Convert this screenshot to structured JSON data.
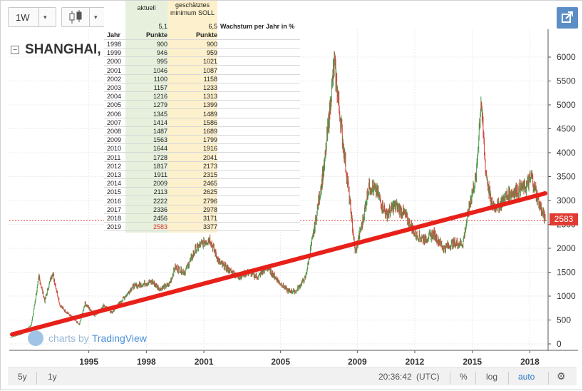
{
  "toolbar": {
    "interval": "1W",
    "interval_caret": "▾",
    "style_caret": "▾"
  },
  "symbol": {
    "collapse": "−",
    "name": "SHANGHAI, W"
  },
  "table": {
    "header_actual": "aktuell",
    "header_soll_line1": "geschätztes",
    "header_soll_line2": "minimum SOLL",
    "growth_actual": "5,1",
    "growth_soll": "6,5",
    "growth_label": "Wachstum per Jahr in %",
    "col_year": "Jahr",
    "col_points_actual": "Punkte",
    "col_points_soll": "Punkte",
    "rows": [
      {
        "year": "1998",
        "actual": "900",
        "soll": "900"
      },
      {
        "year": "1999",
        "actual": "946",
        "soll": "959"
      },
      {
        "year": "2000",
        "actual": "995",
        "soll": "1021"
      },
      {
        "year": "2001",
        "actual": "1046",
        "soll": "1087"
      },
      {
        "year": "2002",
        "actual": "1100",
        "soll": "1158"
      },
      {
        "year": "2003",
        "actual": "1157",
        "soll": "1233"
      },
      {
        "year": "2004",
        "actual": "1216",
        "soll": "1313"
      },
      {
        "year": "2005",
        "actual": "1279",
        "soll": "1399"
      },
      {
        "year": "2006",
        "actual": "1345",
        "soll": "1489"
      },
      {
        "year": "2007",
        "actual": "1414",
        "soll": "1586"
      },
      {
        "year": "2008",
        "actual": "1487",
        "soll": "1689"
      },
      {
        "year": "2009",
        "actual": "1563",
        "soll": "1799"
      },
      {
        "year": "2010",
        "actual": "1644",
        "soll": "1916"
      },
      {
        "year": "2011",
        "actual": "1728",
        "soll": "2041"
      },
      {
        "year": "2012",
        "actual": "1817",
        "soll": "2173"
      },
      {
        "year": "2013",
        "actual": "1911",
        "soll": "2315"
      },
      {
        "year": "2014",
        "actual": "2009",
        "soll": "2465"
      },
      {
        "year": "2015",
        "actual": "2113",
        "soll": "2625"
      },
      {
        "year": "2016",
        "actual": "2222",
        "soll": "2796"
      },
      {
        "year": "2017",
        "actual": "2336",
        "soll": "2978"
      },
      {
        "year": "2018",
        "actual": "2456",
        "soll": "3171"
      },
      {
        "year": "2019",
        "actual": "2583",
        "soll": "3377",
        "highlight": true
      }
    ]
  },
  "watermark": {
    "by": "charts by",
    "brand": "TradingView"
  },
  "price_label": "2583",
  "bottom_bar": {
    "range_5y": "5y",
    "range_1y": "1y",
    "clock": "20:36:42",
    "timezone": "(UTC)",
    "percent": "%",
    "log": "log",
    "auto": "auto"
  },
  "colors": {
    "accent": "#5b8ec4",
    "trend_line": "#e8201a",
    "price_tag": "#e23b33",
    "candle_up": "#4c9a4c",
    "candle_down": "#d0493e",
    "aktuell_bg": "#e6f0dc",
    "soll_bg": "#fdf0cc"
  },
  "icons": {
    "candles": "candlestick-icon",
    "popout": "popout-icon",
    "gear": "gear-icon"
  },
  "chart_data": {
    "type": "line",
    "title": "SHANGHAI, W",
    "ylim": [
      0,
      6400
    ],
    "x_ticks": [
      "1995",
      "1998",
      "2001",
      "2005",
      "2009",
      "2012",
      "2015",
      "2018"
    ],
    "y_ticks": [
      "0",
      "500",
      "1000",
      "1500",
      "2000",
      "2500",
      "3000",
      "3500",
      "4000",
      "4500",
      "5000",
      "5500",
      "6000"
    ],
    "last_price": 2583,
    "trend_line": {
      "start": [
        1991,
        200
      ],
      "end": [
        2018.8,
        3150
      ]
    },
    "series": [
      {
        "x": [
          1990.9,
          1991.5,
          1992.0,
          1992.4,
          1992.7,
          1993.1,
          1993.5,
          1994.0,
          1994.5,
          1994.8,
          1995.3,
          1995.8,
          1996.2,
          1996.8,
          1997.3,
          1997.8,
          1998.3,
          1998.7,
          1999.2,
          1999.5,
          2000.0,
          2000.6,
          2001.3,
          2001.8,
          2002.3,
          2002.8,
          2003.3,
          2003.8,
          2004.3,
          2004.8,
          2005.4,
          2005.8,
          2006.3,
          2006.8,
          2007.3,
          2007.8,
          2008.2,
          2008.6,
          2008.9,
          2009.3,
          2009.6,
          2010.0,
          2010.5,
          2011.0,
          2011.5,
          2012.0,
          2012.5,
          2013.0,
          2013.5,
          2014.0,
          2014.5,
          2014.9,
          2015.2,
          2015.45,
          2015.7,
          2016.0,
          2016.4,
          2016.8,
          2017.3,
          2017.8,
          2018.1,
          2018.5,
          2018.8
        ],
        "values": [
          130,
          210,
          400,
          1400,
          900,
          1500,
          800,
          600,
          400,
          850,
          600,
          800,
          650,
          950,
          1200,
          1250,
          1300,
          1150,
          1250,
          1600,
          1500,
          2000,
          2200,
          1700,
          1550,
          1400,
          1500,
          1400,
          1600,
          1350,
          1100,
          1100,
          1400,
          2500,
          3800,
          5900,
          4400,
          3000,
          1900,
          2600,
          3300,
          3200,
          2700,
          2900,
          2700,
          2300,
          2200,
          2300,
          2000,
          2100,
          2100,
          3000,
          3500,
          5100,
          3600,
          2900,
          2900,
          3100,
          3200,
          3300,
          3500,
          2900,
          2600
        ]
      }
    ]
  }
}
